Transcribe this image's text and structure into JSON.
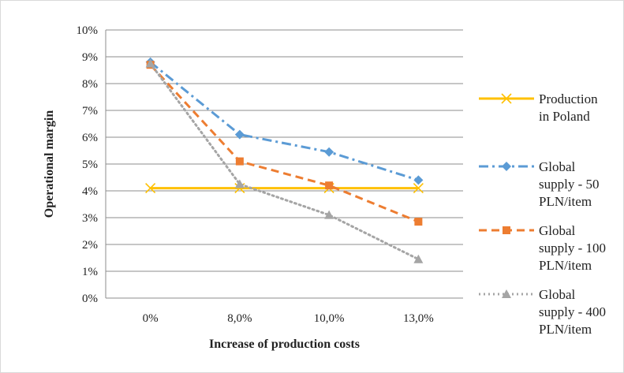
{
  "chart_data": {
    "type": "line",
    "xlabel": "Increase of production costs",
    "ylabel": "Operational margin",
    "categories": [
      "0%",
      "8,0%",
      "10,0%",
      "13,0%"
    ],
    "ylim": [
      0,
      10
    ],
    "yticks": [
      "0%",
      "1%",
      "2%",
      "3%",
      "4%",
      "5%",
      "6%",
      "7%",
      "8%",
      "9%",
      "10%"
    ],
    "grid": true,
    "legend_position": "right",
    "series": [
      {
        "name": "Production in Poland",
        "label_lines": [
          "Production",
          "in Poland"
        ],
        "values": [
          4.1,
          4.1,
          4.1,
          4.1
        ],
        "color": "#ffc000",
        "line_style": "solid",
        "marker": "x"
      },
      {
        "name": "Global supply - 50 PLN/item",
        "label_lines": [
          "Global",
          "supply - 50",
          "PLN/item"
        ],
        "values": [
          8.8,
          6.1,
          5.45,
          4.4
        ],
        "color": "#5b9bd5",
        "line_style": "dash-dot",
        "marker": "diamond"
      },
      {
        "name": "Global supply - 100 PLN/item",
        "label_lines": [
          "Global",
          "supply - 100",
          "PLN/item"
        ],
        "values": [
          8.7,
          5.1,
          4.2,
          2.85
        ],
        "color": "#ed7d31",
        "line_style": "dashed",
        "marker": "square"
      },
      {
        "name": "Global supply - 400 PLN/item",
        "label_lines": [
          "Global",
          "supply - 400",
          "PLN/item"
        ],
        "values": [
          8.75,
          4.25,
          3.1,
          1.45
        ],
        "color": "#a5a5a5",
        "line_style": "dotted",
        "marker": "triangle"
      }
    ]
  }
}
